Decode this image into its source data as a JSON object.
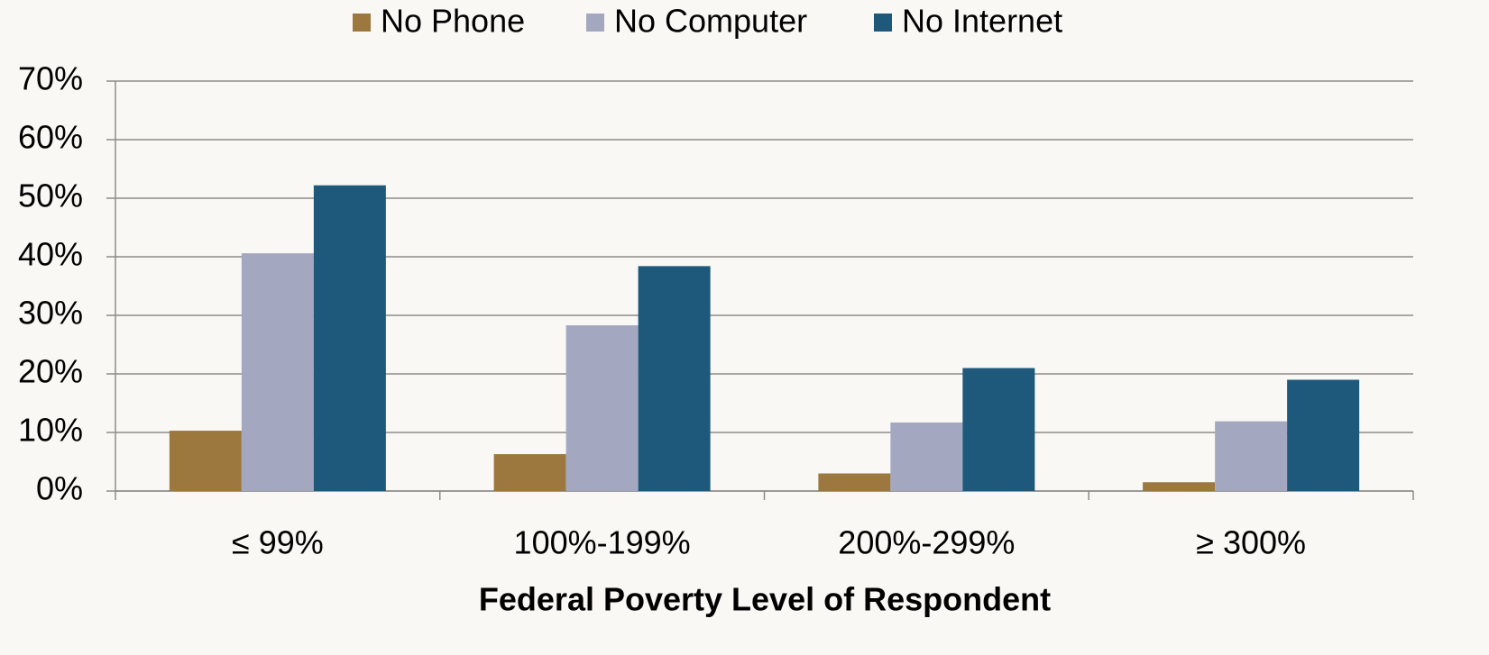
{
  "chart_data": {
    "type": "bar",
    "x_label": "Federal Poverty Level of Respondent",
    "categories": [
      "≤ 99%",
      "100%-199%",
      "200%-299%",
      "≥ 300%"
    ],
    "series": [
      {
        "name": "No Phone",
        "color": "#9c773e",
        "values": [
          10.3,
          6.3,
          3.0,
          1.5
        ]
      },
      {
        "name": "No Computer",
        "color": "#a3a8c0",
        "values": [
          40.6,
          28.3,
          11.7,
          11.9
        ]
      },
      {
        "name": "No Internet",
        "color": "#1e587b",
        "values": [
          52.2,
          38.4,
          21.0,
          19.0
        ]
      }
    ],
    "ylim": [
      0,
      70
    ],
    "yticks": [
      {
        "value": 0,
        "label": "0%"
      },
      {
        "value": 10,
        "label": "10%"
      },
      {
        "value": 20,
        "label": "20%"
      },
      {
        "value": 30,
        "label": "30%"
      },
      {
        "value": 40,
        "label": "40%"
      },
      {
        "value": 50,
        "label": "50%"
      },
      {
        "value": 60,
        "label": "60%"
      },
      {
        "value": 70,
        "label": "70%"
      }
    ],
    "grid": true,
    "legend": "top"
  }
}
